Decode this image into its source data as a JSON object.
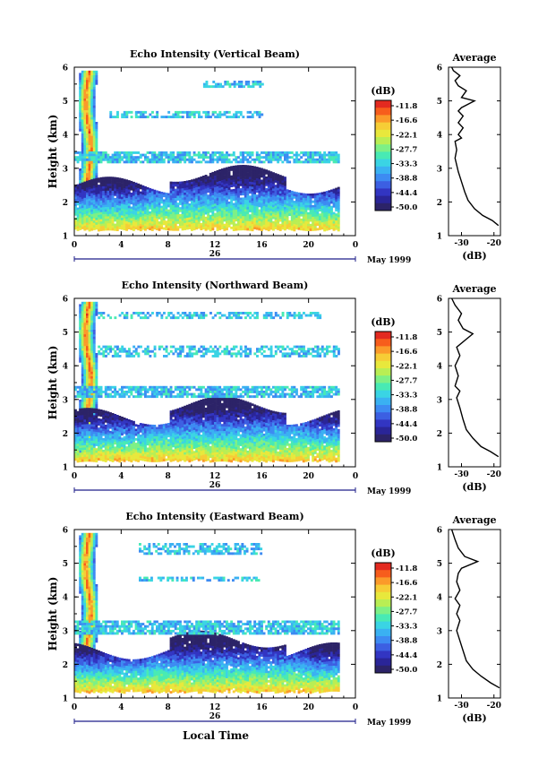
{
  "figure": {
    "xlabel_bottom": "Local Time"
  },
  "colorbar": {
    "unit": "(dB)",
    "ticks": [
      "-11.8",
      "-16.6",
      "-22.1",
      "-27.7",
      "-33.3",
      "-38.8",
      "-44.4",
      "-50.0"
    ],
    "colors": [
      "#e32a20",
      "#f75d1c",
      "#fb9a2a",
      "#f6cd36",
      "#e8e83c",
      "#b9ee54",
      "#7df086",
      "#48eab4",
      "#3ad4e4",
      "#3ab1f2",
      "#3d8bf2",
      "#3c5fe2",
      "#3235c2",
      "#2a2598",
      "#2c2368"
    ]
  },
  "chart_data": [
    {
      "type": "heatmap",
      "title": "Echo Intensity (Vertical Beam)",
      "ylabel": "Height (km)",
      "ylim": [
        1,
        6
      ],
      "yticks": [
        "1",
        "2",
        "3",
        "4",
        "5",
        "6"
      ],
      "xlim": [
        0,
        24
      ],
      "xticks": [
        "0",
        "4",
        "8",
        "12",
        "16",
        "20",
        "0"
      ],
      "day_label": "26",
      "date_label": "May 1999",
      "echo_layers": [
        {
          "from_h": 0.4,
          "to_h": 1.8,
          "bottom_km": 1.4,
          "top_km": 5.9,
          "peak_db": -11.8
        },
        {
          "from_h": 0.0,
          "to_h": 22.5,
          "bottom_km": 1.2,
          "top_km": 2.5,
          "peak_db": -11.8
        },
        {
          "from_h": 0.0,
          "to_h": 22.5,
          "bottom_km": 3.2,
          "top_km": 3.5,
          "peak_db": -33.3
        },
        {
          "from_h": 3.0,
          "to_h": 16.0,
          "bottom_km": 4.5,
          "top_km": 4.7,
          "peak_db": -38.8
        },
        {
          "from_h": 11.0,
          "to_h": 16.0,
          "bottom_km": 5.4,
          "top_km": 5.6,
          "peak_db": -38.8
        }
      ],
      "profile": {
        "title": "Average",
        "xlabel": "(dB)",
        "xticks": [
          "-30",
          "-20"
        ],
        "xlim": [
          -34,
          -18
        ],
        "ylim": [
          1,
          6
        ],
        "yticks": [
          "1",
          "2",
          "3",
          "4",
          "5",
          "6"
        ],
        "points": [
          [
            -18.6,
            1.3
          ],
          [
            -20.5,
            1.45
          ],
          [
            -23.5,
            1.6
          ],
          [
            -26,
            1.8
          ],
          [
            -28,
            2.05
          ],
          [
            -29,
            2.3
          ],
          [
            -30,
            2.6
          ],
          [
            -31,
            2.9
          ],
          [
            -32,
            3.3
          ],
          [
            -31.5,
            3.55
          ],
          [
            -32,
            3.8
          ],
          [
            -30,
            3.9
          ],
          [
            -31,
            4.0
          ],
          [
            -29.5,
            4.2
          ],
          [
            -31,
            4.35
          ],
          [
            -29.5,
            4.55
          ],
          [
            -31,
            4.7
          ],
          [
            -30,
            4.8
          ],
          [
            -26,
            5.0
          ],
          [
            -30,
            5.1
          ],
          [
            -28.5,
            5.3
          ],
          [
            -31,
            5.45
          ],
          [
            -32,
            5.6
          ],
          [
            -30.5,
            5.75
          ],
          [
            -32.5,
            5.9
          ],
          [
            -33,
            6.0
          ]
        ]
      }
    },
    {
      "type": "heatmap",
      "title": "Echo Intensity (Northward Beam)",
      "ylabel": "Height (km)",
      "ylim": [
        1,
        6
      ],
      "yticks": [
        "1",
        "2",
        "3",
        "4",
        "5",
        "6"
      ],
      "xlim": [
        0,
        24
      ],
      "xticks": [
        "0",
        "4",
        "8",
        "12",
        "16",
        "20",
        "0"
      ],
      "day_label": "26",
      "date_label": "May 1999",
      "echo_layers": [
        {
          "from_h": 0.4,
          "to_h": 1.8,
          "bottom_km": 1.4,
          "top_km": 5.9,
          "peak_db": -11.8
        },
        {
          "from_h": 0.0,
          "to_h": 22.5,
          "bottom_km": 1.2,
          "top_km": 2.5,
          "peak_db": -11.8
        },
        {
          "from_h": 0.0,
          "to_h": 22.5,
          "bottom_km": 3.1,
          "top_km": 3.4,
          "peak_db": -33.3
        },
        {
          "from_h": 2.0,
          "to_h": 22.5,
          "bottom_km": 4.3,
          "top_km": 4.6,
          "peak_db": -38.8
        },
        {
          "from_h": 2.0,
          "to_h": 21.0,
          "bottom_km": 5.4,
          "top_km": 5.6,
          "peak_db": -38.8
        }
      ],
      "profile": {
        "title": "Average",
        "xlabel": "(dB)",
        "xticks": [
          "-30",
          "-20"
        ],
        "xlim": [
          -34,
          -18
        ],
        "ylim": [
          1,
          6
        ],
        "yticks": [
          "1",
          "2",
          "3",
          "4",
          "5",
          "6"
        ],
        "points": [
          [
            -18.6,
            1.3
          ],
          [
            -21,
            1.45
          ],
          [
            -24,
            1.6
          ],
          [
            -26.5,
            1.85
          ],
          [
            -28.5,
            2.1
          ],
          [
            -29.5,
            2.4
          ],
          [
            -30.5,
            2.75
          ],
          [
            -31.5,
            3.05
          ],
          [
            -30.5,
            3.25
          ],
          [
            -32,
            3.4
          ],
          [
            -31,
            3.7
          ],
          [
            -32,
            4.0
          ],
          [
            -30.5,
            4.3
          ],
          [
            -31.5,
            4.55
          ],
          [
            -29,
            4.75
          ],
          [
            -26.5,
            4.95
          ],
          [
            -29.5,
            5.1
          ],
          [
            -31,
            5.35
          ],
          [
            -30,
            5.55
          ],
          [
            -32,
            5.8
          ],
          [
            -33,
            6.0
          ]
        ]
      }
    },
    {
      "type": "heatmap",
      "title": "Echo Intensity (Eastward Beam)",
      "ylabel": "Height (km)",
      "ylim": [
        1,
        6
      ],
      "yticks": [
        "1",
        "2",
        "3",
        "4",
        "5",
        "6"
      ],
      "xlim": [
        0,
        24
      ],
      "xticks": [
        "0",
        "4",
        "8",
        "12",
        "16",
        "20",
        "0"
      ],
      "day_label": "26",
      "date_label": "May 1999",
      "echo_layers": [
        {
          "from_h": 0.4,
          "to_h": 1.8,
          "bottom_km": 1.4,
          "top_km": 5.9,
          "peak_db": -11.8
        },
        {
          "from_h": 0.0,
          "to_h": 22.5,
          "bottom_km": 1.2,
          "top_km": 2.4,
          "peak_db": -11.8
        },
        {
          "from_h": 0.0,
          "to_h": 22.5,
          "bottom_km": 2.9,
          "top_km": 3.3,
          "peak_db": -33.3
        },
        {
          "from_h": 5.5,
          "to_h": 16.0,
          "bottom_km": 4.5,
          "top_km": 4.6,
          "peak_db": -38.8
        },
        {
          "from_h": 5.5,
          "to_h": 16.0,
          "bottom_km": 5.3,
          "top_km": 5.6,
          "peak_db": -38.8
        }
      ],
      "profile": {
        "title": "Average",
        "xlabel": "(dB)",
        "xticks": [
          "-30",
          "-20"
        ],
        "xlim": [
          -34,
          -18
        ],
        "ylim": [
          1,
          6
        ],
        "yticks": [
          "1",
          "2",
          "3",
          "4",
          "5",
          "6"
        ],
        "points": [
          [
            -18.3,
            1.3
          ],
          [
            -21,
            1.45
          ],
          [
            -24,
            1.65
          ],
          [
            -26.5,
            1.85
          ],
          [
            -28.5,
            2.1
          ],
          [
            -29.5,
            2.4
          ],
          [
            -30.5,
            2.7
          ],
          [
            -31.5,
            3.0
          ],
          [
            -30.5,
            3.3
          ],
          [
            -31.5,
            3.5
          ],
          [
            -30.5,
            3.75
          ],
          [
            -32,
            3.95
          ],
          [
            -30.5,
            4.2
          ],
          [
            -31.5,
            4.45
          ],
          [
            -31,
            4.7
          ],
          [
            -30,
            4.85
          ],
          [
            -25,
            5.05
          ],
          [
            -29,
            5.2
          ],
          [
            -31,
            5.45
          ],
          [
            -32,
            5.7
          ],
          [
            -33,
            6.0
          ]
        ]
      }
    }
  ]
}
